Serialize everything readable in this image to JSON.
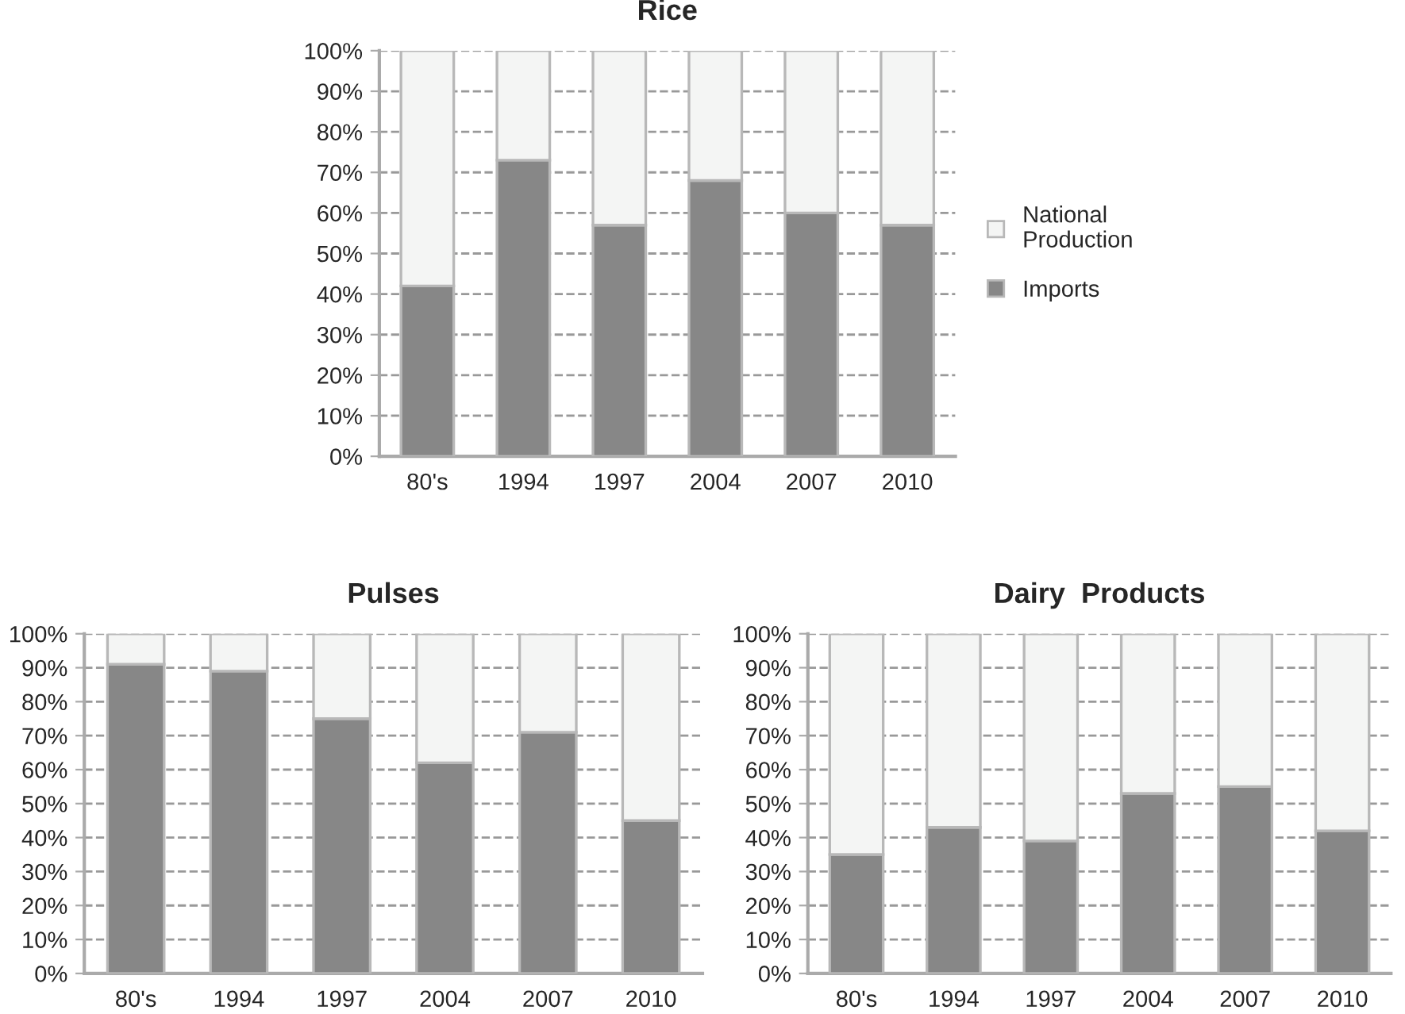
{
  "chart_data": [
    {
      "type": "bar",
      "title": "Rice",
      "stacked": true,
      "categories": [
        "80's",
        "1994",
        "1997",
        "2004",
        "2007",
        "2010"
      ],
      "series": [
        {
          "name": "Imports",
          "color": "#878787",
          "values": [
            42,
            73,
            57,
            68,
            60,
            57
          ]
        },
        {
          "name": "National Production",
          "color": "#f4f5f4",
          "values": [
            58,
            27,
            43,
            32,
            40,
            43
          ]
        }
      ],
      "ylim": [
        0,
        100
      ],
      "yticks": [
        {
          "value": 0,
          "label": "0%"
        },
        {
          "value": 10,
          "label": "10%"
        },
        {
          "value": 20,
          "label": "20%"
        },
        {
          "value": 30,
          "label": "30%"
        },
        {
          "value": 40,
          "label": "40%"
        },
        {
          "value": 50,
          "label": "50%"
        },
        {
          "value": 60,
          "label": "60%"
        },
        {
          "value": 70,
          "label": "70%"
        },
        {
          "value": 80,
          "label": "80%"
        },
        {
          "value": 90,
          "label": "90%"
        },
        {
          "value": 100,
          "label": "100%"
        }
      ],
      "grid": "y",
      "legend": "right"
    },
    {
      "type": "bar",
      "title": "Pulses",
      "stacked": true,
      "categories": [
        "80's",
        "1994",
        "1997",
        "2004",
        "2007",
        "2010"
      ],
      "series": [
        {
          "color": "#878787",
          "values": [
            91,
            89,
            75,
            62,
            71,
            45
          ]
        },
        {
          "color": "#f4f5f4",
          "values": [
            9,
            11,
            25,
            38,
            29,
            55
          ]
        }
      ],
      "ylim": [
        0,
        100
      ],
      "yticks": [
        {
          "value": 0,
          "label": "0%"
        },
        {
          "value": 10,
          "label": "10%"
        },
        {
          "value": 20,
          "label": "20%"
        },
        {
          "value": 30,
          "label": "30%"
        },
        {
          "value": 40,
          "label": "40%"
        },
        {
          "value": 50,
          "label": "50%"
        },
        {
          "value": 60,
          "label": "60%"
        },
        {
          "value": 70,
          "label": "70%"
        },
        {
          "value": 80,
          "label": "80%"
        },
        {
          "value": 90,
          "label": "90%"
        },
        {
          "value": 100,
          "label": "100%"
        }
      ],
      "grid": "y"
    },
    {
      "type": "bar",
      "title": "Dairy  Products",
      "stacked": true,
      "categories": [
        "80's",
        "1994",
        "1997",
        "2004",
        "2007",
        "2010"
      ],
      "series": [
        {
          "color": "#878787",
          "values": [
            35,
            43,
            39,
            53,
            55,
            42
          ]
        },
        {
          "color": "#f4f5f4",
          "values": [
            65,
            57,
            61,
            47,
            45,
            58
          ]
        }
      ],
      "ylim": [
        0,
        100
      ],
      "yticks": [
        {
          "value": 0,
          "label": "0%"
        },
        {
          "value": 10,
          "label": "10%"
        },
        {
          "value": 20,
          "label": "20%"
        },
        {
          "value": 30,
          "label": "30%"
        },
        {
          "value": 40,
          "label": "40%"
        },
        {
          "value": 50,
          "label": "50%"
        },
        {
          "value": 60,
          "label": "60%"
        },
        {
          "value": 70,
          "label": "70%"
        },
        {
          "value": 80,
          "label": "80%"
        },
        {
          "value": 90,
          "label": "90%"
        },
        {
          "value": 100,
          "label": "100%"
        }
      ],
      "grid": "y"
    }
  ]
}
